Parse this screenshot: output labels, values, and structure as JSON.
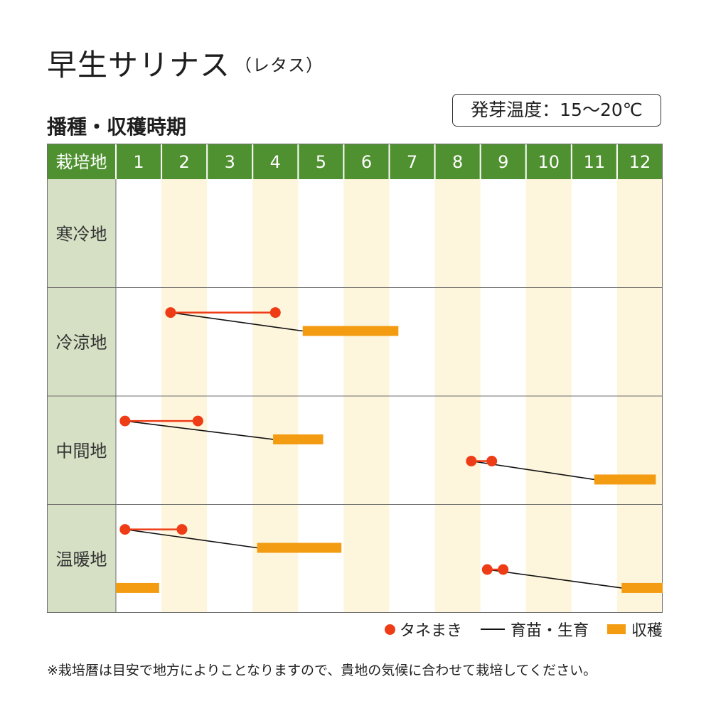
{
  "title": "早生サリナス",
  "title_sub": "（レタス）",
  "subtitle": "播種・収穫時期",
  "germination_temp": "発芽温度：15～20℃",
  "header_label": "栽培地",
  "months": [
    "1",
    "2",
    "3",
    "4",
    "5",
    "6",
    "7",
    "8",
    "9",
    "10",
    "11",
    "12"
  ],
  "colors": {
    "header_green": "#4f9130",
    "label_column": "#d6e0c4",
    "stripe": "#fdf5dc",
    "sowing": "#ee3d16",
    "seedling": "#111111",
    "harvest": "#f39c12"
  },
  "chart_data": {
    "type": "gantt",
    "regions": [
      {
        "name": "寒冷地",
        "schedules": []
      },
      {
        "name": "冷涼地",
        "schedules": [
          {
            "sowing": [
              2.2,
              4.5
            ],
            "harvest": [
              5.1,
              7.2
            ]
          }
        ]
      },
      {
        "name": "中間地",
        "schedules": [
          {
            "sowing": [
              1.2,
              2.8
            ],
            "harvest": [
              4.45,
              5.55
            ]
          },
          {
            "sowing": [
              8.8,
              9.25
            ],
            "harvest": [
              11.5,
              12.85
            ]
          }
        ]
      },
      {
        "name": "温暖地",
        "schedules": [
          {
            "sowing": [
              1.2,
              2.45
            ],
            "harvest": [
              4.1,
              5.95
            ]
          },
          {
            "sowing": [
              9.15,
              9.5
            ],
            "harvest": [
              12.1,
              13.0
            ],
            "harvest_wrap": [
              1.0,
              1.95
            ]
          }
        ]
      }
    ]
  },
  "legend": {
    "sowing": "タネまき",
    "seedling": "育苗・生育",
    "harvest": "収穫"
  },
  "note": "※栽培暦は目安で地方によりことなりますので、貴地の気候に合わせて栽培してください。"
}
